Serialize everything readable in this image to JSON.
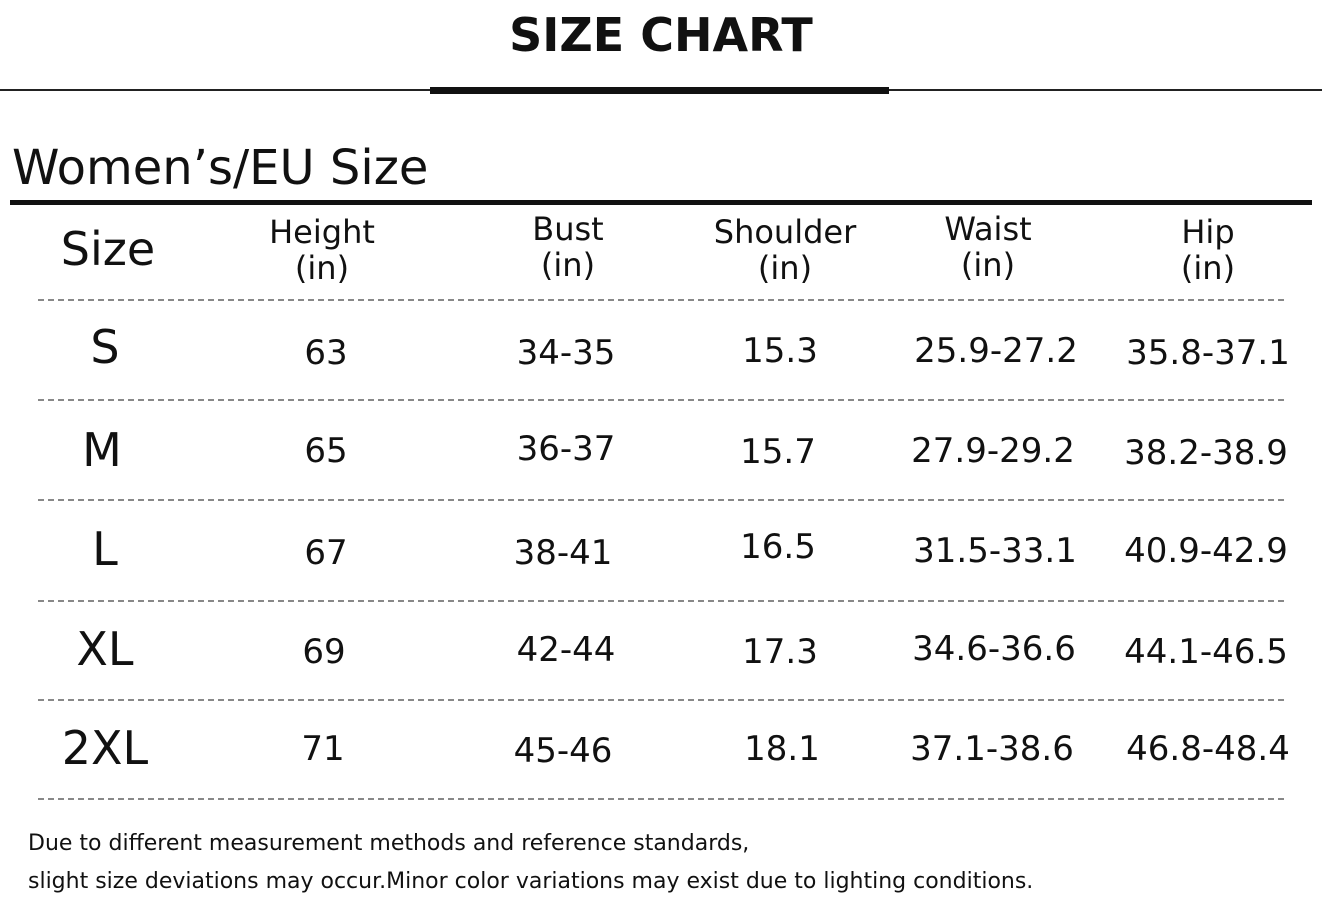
{
  "title": "SIZE CHART",
  "section_title": "Women’s/EU Size",
  "headers": {
    "size": "Size",
    "height": [
      "Height",
      "(in)"
    ],
    "bust": [
      "Bust",
      "(in)"
    ],
    "shoulder": [
      "Shoulder",
      "(in)"
    ],
    "waist": [
      "Waist",
      "(in)"
    ],
    "hip": [
      "Hip",
      "(in)"
    ]
  },
  "rows": [
    {
      "size": "S",
      "height": "63",
      "bust": "34-35",
      "shoulder": "15.3",
      "waist": "25.9-27.2",
      "hip": "35.8-37.1"
    },
    {
      "size": "M",
      "height": "65",
      "bust": "36-37",
      "shoulder": "15.7",
      "waist": "27.9-29.2",
      "hip": "38.2-38.9"
    },
    {
      "size": "L",
      "height": "67",
      "bust": "38-41",
      "shoulder": "16.5",
      "waist": "31.5-33.1",
      "hip": "40.9-42.9"
    },
    {
      "size": "XL",
      "height": "69",
      "bust": "42-44",
      "shoulder": "17.3",
      "waist": "34.6-36.6",
      "hip": "44.1-46.5"
    },
    {
      "size": "2XL",
      "height": "71",
      "bust": "45-46",
      "shoulder": "18.1",
      "waist": "37.1-38.6",
      "hip": "46.8-48.4"
    }
  ],
  "notes": [
    "Due to different measurement methods and reference standards,",
    "slight size deviations may occur.Minor color variations may exist due to lighting conditions."
  ]
}
